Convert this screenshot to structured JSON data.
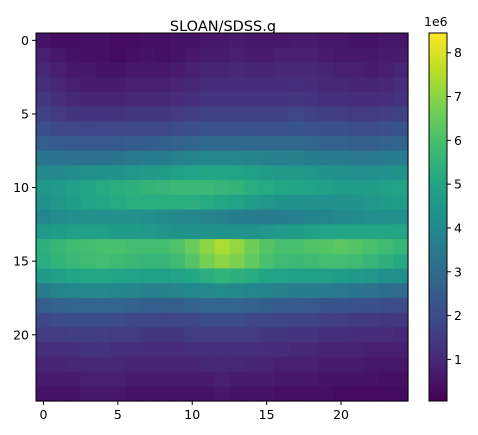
{
  "chart_data": {
    "type": "heatmap",
    "title": "SLOAN/SDSS.g",
    "xlabel": "",
    "ylabel": "",
    "colormap": "viridis",
    "origin": "upper",
    "x_ticks": [
      "0",
      "5",
      "10",
      "15",
      "20"
    ],
    "y_ticks": [
      "0",
      "5",
      "10",
      "15",
      "20"
    ],
    "colorbar": {
      "ticks": [
        "1",
        "2",
        "3",
        "4",
        "5",
        "6",
        "7",
        "8"
      ],
      "offset_label": "1e6",
      "vmin": 0.05,
      "vmax": 8.45
    },
    "grid": false,
    "values": [
      [
        0.5,
        0.3,
        0.3,
        0.4,
        0.4,
        0.3,
        0.3,
        0.4,
        0.4,
        0.5,
        0.5,
        0.6,
        0.6,
        0.7,
        0.6,
        0.6,
        0.6,
        0.7,
        0.7,
        0.6,
        0.6,
        0.5,
        0.5,
        0.6,
        0.6
      ],
      [
        0.8,
        0.6,
        0.5,
        0.4,
        0.4,
        0.3,
        0.4,
        0.5,
        0.4,
        0.5,
        0.6,
        0.7,
        0.7,
        0.8,
        0.7,
        0.7,
        0.8,
        0.8,
        0.8,
        0.7,
        0.6,
        0.6,
        0.6,
        0.7,
        0.7
      ],
      [
        1.0,
        0.8,
        0.6,
        0.6,
        0.5,
        0.5,
        0.6,
        0.6,
        0.6,
        0.7,
        0.8,
        0.9,
        0.9,
        1.0,
        0.9,
        0.9,
        1.0,
        1.0,
        1.0,
        0.9,
        0.8,
        0.8,
        0.7,
        0.8,
        0.9
      ],
      [
        1.2,
        1.0,
        0.8,
        0.7,
        0.7,
        0.7,
        0.8,
        0.8,
        0.8,
        0.9,
        1.0,
        1.1,
        1.1,
        1.1,
        1.1,
        1.1,
        1.1,
        1.2,
        1.1,
        1.0,
        1.0,
        0.9,
        0.9,
        1.0,
        1.1
      ],
      [
        1.4,
        1.2,
        1.0,
        0.9,
        0.9,
        0.9,
        1.0,
        1.0,
        1.0,
        1.1,
        1.2,
        1.3,
        1.3,
        1.3,
        1.3,
        1.3,
        1.3,
        1.4,
        1.3,
        1.2,
        1.2,
        1.1,
        1.1,
        1.2,
        1.3
      ],
      [
        1.7,
        1.5,
        1.3,
        1.3,
        1.3,
        1.3,
        1.4,
        1.4,
        1.4,
        1.5,
        1.6,
        1.7,
        1.7,
        1.7,
        1.7,
        1.7,
        1.7,
        1.8,
        1.7,
        1.6,
        1.6,
        1.5,
        1.5,
        1.6,
        1.7
      ],
      [
        2.1,
        1.9,
        1.8,
        1.8,
        1.8,
        1.8,
        1.9,
        1.9,
        1.9,
        2.0,
        2.1,
        2.2,
        2.2,
        2.2,
        2.2,
        2.2,
        2.2,
        2.3,
        2.2,
        2.1,
        2.1,
        2.0,
        2.0,
        2.1,
        2.2
      ],
      [
        2.6,
        2.5,
        2.4,
        2.4,
        2.4,
        2.4,
        2.5,
        2.5,
        2.6,
        2.7,
        2.8,
        2.9,
        2.9,
        2.9,
        2.9,
        2.9,
        2.9,
        2.9,
        2.8,
        2.7,
        2.7,
        2.6,
        2.6,
        2.7,
        2.8
      ],
      [
        3.3,
        3.2,
        3.2,
        3.2,
        3.2,
        3.3,
        3.4,
        3.5,
        3.6,
        3.7,
        3.8,
        3.9,
        3.9,
        3.9,
        3.8,
        3.7,
        3.7,
        3.7,
        3.6,
        3.5,
        3.5,
        3.4,
        3.4,
        3.5,
        3.6
      ],
      [
        4.0,
        4.0,
        4.1,
        4.2,
        4.3,
        4.4,
        4.5,
        4.6,
        4.7,
        4.8,
        4.9,
        5.0,
        5.0,
        4.9,
        4.8,
        4.7,
        4.6,
        4.6,
        4.5,
        4.4,
        4.3,
        4.2,
        4.2,
        4.3,
        4.4
      ],
      [
        4.5,
        4.6,
        4.8,
        5.0,
        5.2,
        5.3,
        5.4,
        5.5,
        5.6,
        5.7,
        5.7,
        5.7,
        5.6,
        5.5,
        5.3,
        5.2,
        5.1,
        5.0,
        4.9,
        4.8,
        4.7,
        4.7,
        4.7,
        4.8,
        4.9
      ],
      [
        4.3,
        4.5,
        4.7,
        4.9,
        5.1,
        5.2,
        5.3,
        5.3,
        5.3,
        5.3,
        5.3,
        5.2,
        5.1,
        4.9,
        4.7,
        4.5,
        4.4,
        4.3,
        4.3,
        4.3,
        4.3,
        4.4,
        4.5,
        4.6,
        4.7
      ],
      [
        3.9,
        4.1,
        4.2,
        4.3,
        4.3,
        4.3,
        4.3,
        4.2,
        4.1,
        4.0,
        3.9,
        3.8,
        3.7,
        3.6,
        3.5,
        3.5,
        3.6,
        3.7,
        3.8,
        3.9,
        4.0,
        4.1,
        4.2,
        4.2,
        4.3
      ],
      [
        4.6,
        4.7,
        4.8,
        4.8,
        4.8,
        4.7,
        4.7,
        4.6,
        4.5,
        4.4,
        4.4,
        4.4,
        4.4,
        4.4,
        4.4,
        4.5,
        4.6,
        4.7,
        4.8,
        4.9,
        5.0,
        5.0,
        5.0,
        5.0,
        5.0
      ],
      [
        5.4,
        5.6,
        5.8,
        5.9,
        6.0,
        6.0,
        5.9,
        5.9,
        5.9,
        6.1,
        6.5,
        7.0,
        7.4,
        7.1,
        6.6,
        6.2,
        6.0,
        6.0,
        6.1,
        6.2,
        6.3,
        6.2,
        6.0,
        5.8,
        5.6
      ],
      [
        5.3,
        5.5,
        5.7,
        5.8,
        5.9,
        5.8,
        5.7,
        5.6,
        5.6,
        5.8,
        6.2,
        6.7,
        7.0,
        6.8,
        6.4,
        6.0,
        5.8,
        5.7,
        5.8,
        5.9,
        5.9,
        5.8,
        5.6,
        5.4,
        5.2
      ],
      [
        4.6,
        4.8,
        5.0,
        5.1,
        5.1,
        5.0,
        4.9,
        4.8,
        4.8,
        4.9,
        5.1,
        5.3,
        5.5,
        5.4,
        5.2,
        5.0,
        4.9,
        4.8,
        4.8,
        4.8,
        4.7,
        4.6,
        4.5,
        4.3,
        4.2
      ],
      [
        3.6,
        3.8,
        3.9,
        4.0,
        4.0,
        3.9,
        3.8,
        3.7,
        3.7,
        3.8,
        3.9,
        4.0,
        4.1,
        4.0,
        3.9,
        3.8,
        3.7,
        3.6,
        3.6,
        3.5,
        3.4,
        3.3,
        3.2,
        3.1,
        3.0
      ],
      [
        2.6,
        2.7,
        2.8,
        2.8,
        2.8,
        2.8,
        2.7,
        2.6,
        2.6,
        2.6,
        2.7,
        2.8,
        2.8,
        2.8,
        2.7,
        2.6,
        2.5,
        2.5,
        2.4,
        2.3,
        2.3,
        2.2,
        2.1,
        2.0,
        2.0
      ],
      [
        1.9,
        2.0,
        2.0,
        2.0,
        2.0,
        2.0,
        1.9,
        1.9,
        1.8,
        1.9,
        1.9,
        2.0,
        2.0,
        2.0,
        1.9,
        1.9,
        1.8,
        1.7,
        1.7,
        1.6,
        1.6,
        1.5,
        1.5,
        1.4,
        1.4
      ],
      [
        1.5,
        1.5,
        1.6,
        1.6,
        1.6,
        1.5,
        1.5,
        1.4,
        1.4,
        1.4,
        1.5,
        1.5,
        1.5,
        1.5,
        1.5,
        1.4,
        1.4,
        1.3,
        1.3,
        1.2,
        1.2,
        1.1,
        1.1,
        1.1,
        1.0
      ],
      [
        1.2,
        1.2,
        1.2,
        1.3,
        1.3,
        1.2,
        1.2,
        1.1,
        1.1,
        1.1,
        1.2,
        1.2,
        1.2,
        1.2,
        1.2,
        1.1,
        1.1,
        1.0,
        1.0,
        0.9,
        0.9,
        0.9,
        0.8,
        0.8,
        0.8
      ],
      [
        0.9,
        0.9,
        1.0,
        1.0,
        1.0,
        1.0,
        0.9,
        0.9,
        0.9,
        0.9,
        0.9,
        1.0,
        1.0,
        1.0,
        0.9,
        0.9,
        0.8,
        0.8,
        0.8,
        0.7,
        0.7,
        0.7,
        0.6,
        0.6,
        0.6
      ],
      [
        0.7,
        0.7,
        0.7,
        0.8,
        0.8,
        0.8,
        0.7,
        0.7,
        0.7,
        0.7,
        0.7,
        0.7,
        0.8,
        0.7,
        0.7,
        0.7,
        0.6,
        0.6,
        0.6,
        0.5,
        0.5,
        0.5,
        0.5,
        0.4,
        0.4
      ],
      [
        0.5,
        0.5,
        0.5,
        0.6,
        0.6,
        0.6,
        0.5,
        0.5,
        0.5,
        0.5,
        0.5,
        0.5,
        0.6,
        0.5,
        0.5,
        0.5,
        0.4,
        0.4,
        0.4,
        0.4,
        0.3,
        0.3,
        0.3,
        0.3,
        0.3
      ]
    ]
  }
}
